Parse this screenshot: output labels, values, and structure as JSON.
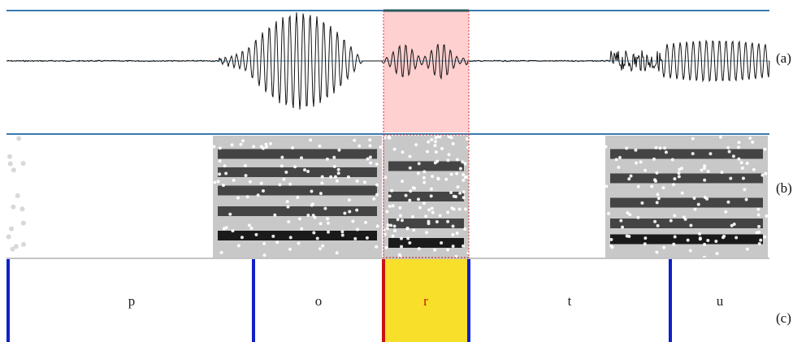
{
  "panels": {
    "waveform": {
      "label": "(a)"
    },
    "spectrogram": {
      "label": "(b)"
    },
    "segmentation": {
      "label": "(c)"
    }
  },
  "segments": [
    {
      "label": "p",
      "selected": false
    },
    {
      "label": "o",
      "selected": false
    },
    {
      "label": "r",
      "selected": true
    },
    {
      "label": "t",
      "selected": false
    },
    {
      "label": "u",
      "selected": false
    }
  ],
  "colors": {
    "selection_fill": "#ffd0d0",
    "selection_border": "#dd3333",
    "selected_segment_fill": "#f7df2a",
    "segment_boundary": "#1020c8",
    "selected_boundary": "#cc1111",
    "panel_line": "#3a7ab0",
    "waveform": "#111111"
  }
}
